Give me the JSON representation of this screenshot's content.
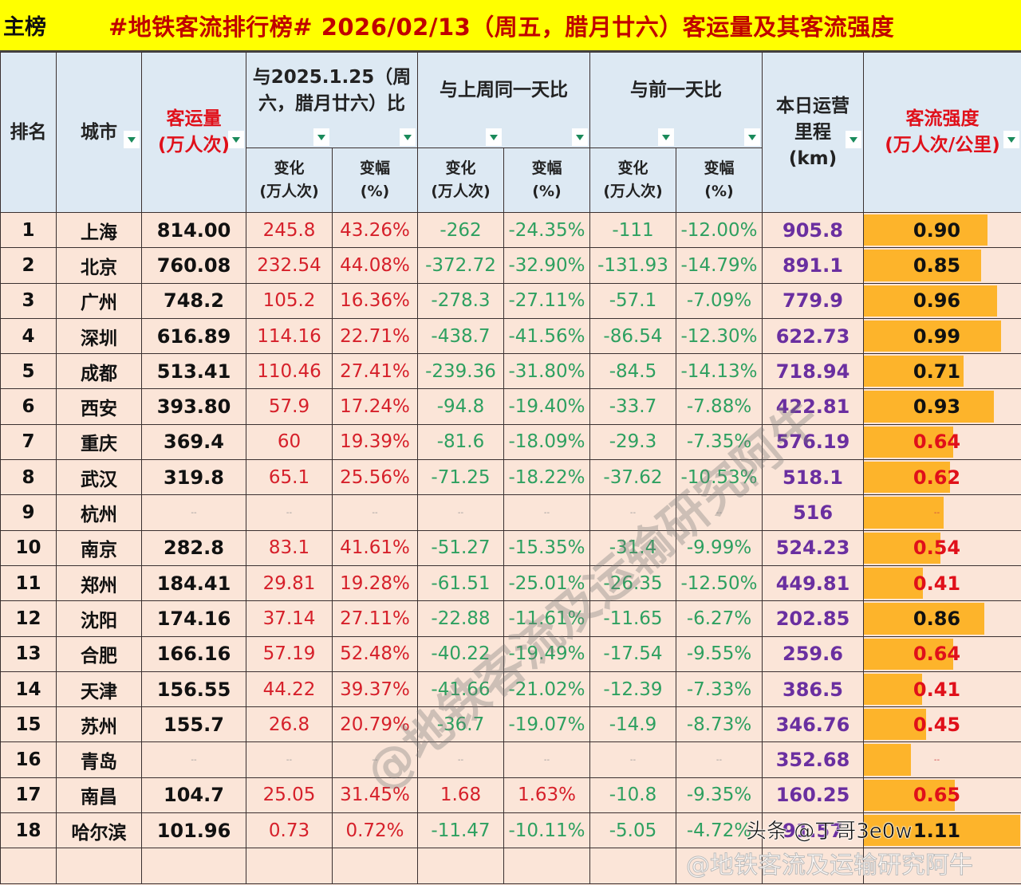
{
  "title": {
    "tag": "主榜",
    "main": "#地铁客流排行榜# 2026/02/13（周五，腊月廿六）客运量及其客流强度"
  },
  "header": {
    "rank": "排名",
    "city": "城市",
    "volume_l1": "客运量",
    "volume_l2": "(万人次)",
    "group1_l1": "与2025.1.25（周",
    "group1_l2": "六，腊月廿六）比",
    "group2": "与上周同一天比",
    "group3": "与前一天比",
    "mileage_l1": "本日运营",
    "mileage_l2": "里程",
    "mileage_l3": "(km)",
    "intensity_l1": "客流强度",
    "intensity_l2": "(万人次/公里)",
    "change_l1": "变化",
    "change_l2": "(万人次)",
    "pct_l1": "变幅",
    "pct_l2": "(%)"
  },
  "rows": [
    {
      "rank": "1",
      "city": "上海",
      "volume": "814.00",
      "c1": "245.8",
      "p1": "43.26%",
      "c2": "-262",
      "p2": "-24.35%",
      "c3": "-111",
      "p3": "-12.00%",
      "km": "905.8",
      "intensity": "0.90",
      "bar": 0.79,
      "int_color": "black"
    },
    {
      "rank": "2",
      "city": "北京",
      "volume": "760.08",
      "c1": "232.54",
      "p1": "44.08%",
      "c2": "-372.72",
      "p2": "-32.90%",
      "c3": "-131.93",
      "p3": "-14.79%",
      "km": "891.1",
      "intensity": "0.85",
      "bar": 0.75,
      "int_color": "black"
    },
    {
      "rank": "3",
      "city": "广州",
      "volume": "748.2",
      "c1": "105.2",
      "p1": "16.36%",
      "c2": "-278.3",
      "p2": "-27.11%",
      "c3": "-57.1",
      "p3": "-7.09%",
      "km": "779.9",
      "intensity": "0.96",
      "bar": 0.85,
      "int_color": "black"
    },
    {
      "rank": "4",
      "city": "深圳",
      "volume": "616.89",
      "c1": "114.16",
      "p1": "22.71%",
      "c2": "-438.7",
      "p2": "-41.56%",
      "c3": "-86.54",
      "p3": "-12.30%",
      "km": "622.73",
      "intensity": "0.99",
      "bar": 0.88,
      "int_color": "black"
    },
    {
      "rank": "5",
      "city": "成都",
      "volume": "513.41",
      "c1": "110.46",
      "p1": "27.41%",
      "c2": "-239.36",
      "p2": "-31.80%",
      "c3": "-84.5",
      "p3": "-14.13%",
      "km": "718.94",
      "intensity": "0.71",
      "bar": 0.64,
      "int_color": "black"
    },
    {
      "rank": "6",
      "city": "西安",
      "volume": "393.80",
      "c1": "57.9",
      "p1": "17.24%",
      "c2": "-94.8",
      "p2": "-19.40%",
      "c3": "-33.7",
      "p3": "-7.88%",
      "km": "422.81",
      "intensity": "0.93",
      "bar": 0.83,
      "int_color": "black"
    },
    {
      "rank": "7",
      "city": "重庆",
      "volume": "369.4",
      "c1": "60",
      "p1": "19.39%",
      "c2": "-81.6",
      "p2": "-18.09%",
      "c3": "-29.3",
      "p3": "-7.35%",
      "km": "576.19",
      "intensity": "0.64",
      "bar": 0.57,
      "int_color": "red"
    },
    {
      "rank": "8",
      "city": "武汉",
      "volume": "319.8",
      "c1": "65.1",
      "p1": "25.56%",
      "c2": "-71.25",
      "p2": "-18.22%",
      "c3": "-37.62",
      "p3": "-10.53%",
      "km": "518.1",
      "intensity": "0.62",
      "bar": 0.55,
      "int_color": "red"
    },
    {
      "rank": "9",
      "city": "杭州",
      "volume": "--",
      "c1": "--",
      "p1": "--",
      "c2": "--",
      "p2": "--",
      "c3": "--",
      "p3": "--",
      "km": "516",
      "intensity": "--",
      "bar": 0.51,
      "int_color": "red"
    },
    {
      "rank": "10",
      "city": "南京",
      "volume": "282.8",
      "c1": "83.1",
      "p1": "41.61%",
      "c2": "-51.27",
      "p2": "-15.35%",
      "c3": "-31.4",
      "p3": "-9.99%",
      "km": "524.23",
      "intensity": "0.54",
      "bar": 0.49,
      "int_color": "red"
    },
    {
      "rank": "11",
      "city": "郑州",
      "volume": "184.41",
      "c1": "29.81",
      "p1": "19.28%",
      "c2": "-61.51",
      "p2": "-25.01%",
      "c3": "-26.35",
      "p3": "-12.50%",
      "km": "449.81",
      "intensity": "0.41",
      "bar": 0.38,
      "int_color": "red"
    },
    {
      "rank": "12",
      "city": "沈阳",
      "volume": "174.16",
      "c1": "37.14",
      "p1": "27.11%",
      "c2": "-22.88",
      "p2": "-11.61%",
      "c3": "-11.65",
      "p3": "-6.27%",
      "km": "202.85",
      "intensity": "0.86",
      "bar": 0.77,
      "int_color": "black"
    },
    {
      "rank": "13",
      "city": "合肥",
      "volume": "166.16",
      "c1": "57.19",
      "p1": "52.48%",
      "c2": "-40.22",
      "p2": "-19.49%",
      "c3": "-17.54",
      "p3": "-9.55%",
      "km": "259.6",
      "intensity": "0.64",
      "bar": 0.57,
      "int_color": "red"
    },
    {
      "rank": "14",
      "city": "天津",
      "volume": "156.55",
      "c1": "44.22",
      "p1": "39.37%",
      "c2": "-41.66",
      "p2": "-21.02%",
      "c3": "-12.39",
      "p3": "-7.33%",
      "km": "386.5",
      "intensity": "0.41",
      "bar": 0.37,
      "int_color": "red"
    },
    {
      "rank": "15",
      "city": "苏州",
      "volume": "155.7",
      "c1": "26.8",
      "p1": "20.79%",
      "c2": "-36.7",
      "p2": "-19.07%",
      "c3": "-14.9",
      "p3": "-8.73%",
      "km": "346.76",
      "intensity": "0.45",
      "bar": 0.4,
      "int_color": "red"
    },
    {
      "rank": "16",
      "city": "青岛",
      "volume": "--",
      "c1": "--",
      "p1": "--",
      "c2": "--",
      "p2": "--",
      "c3": "--",
      "p3": "--",
      "km": "352.68",
      "intensity": "--",
      "bar": 0.3,
      "int_color": "red"
    },
    {
      "rank": "17",
      "city": "南昌",
      "volume": "104.7",
      "c1": "25.05",
      "p1": "31.45%",
      "c2": "1.68",
      "p2": "1.63%",
      "c3": "-10.8",
      "p3": "-9.35%",
      "km": "160.25",
      "intensity": "0.65",
      "bar": 0.58,
      "int_color": "red"
    },
    {
      "rank": "18",
      "city": "哈尔滨",
      "volume": "101.96",
      "c1": "0.73",
      "p1": "0.72%",
      "c2": "-11.47",
      "p2": "-10.11%",
      "c3": "-5.05",
      "p3": "-4.72%",
      "km": "91.57",
      "intensity": "1.11",
      "bar": 1.0,
      "int_color": "black"
    }
  ],
  "watermarks": {
    "diagonal": "@地铁客流及运输研究阿牛",
    "footer": "@地铁客流及运输研究阿牛",
    "credit": "头条 @丁哥3e0w"
  },
  "colors": {
    "title_bg": "#ffff00",
    "title_text": "#c00000",
    "header_bg": "#dde9f3",
    "row_bg": "#fbe5d8",
    "positive": "#d6202a",
    "negative": "#2ea060",
    "mileage": "#6a2fa0",
    "bar": "#fdb42b"
  }
}
